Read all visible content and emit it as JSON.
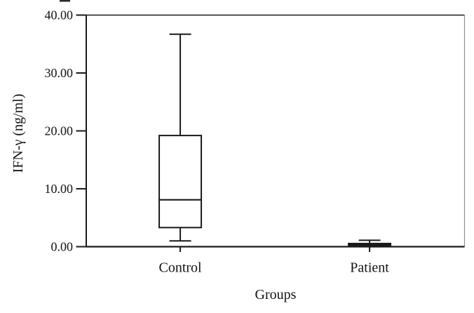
{
  "chart_data": {
    "type": "boxplot",
    "title": "",
    "xlabel": "Groups",
    "ylabel": "IFN-γ (ng/ml)",
    "ylim": [
      0,
      40
    ],
    "yticks": [
      0,
      10,
      20,
      30,
      40
    ],
    "ytick_labels": [
      "0.00",
      "10.00",
      "20.00",
      "30.00",
      "40.00"
    ],
    "categories": [
      "Control",
      "Patient"
    ],
    "series": [
      {
        "name": "Control",
        "whisker_low": 1.0,
        "q1": 3.3,
        "median": 8.1,
        "q3": 19.2,
        "whisker_high": 36.7
      },
      {
        "name": "Patient",
        "whisker_low": 0.0,
        "q1": 0.05,
        "median": 0.3,
        "q3": 0.55,
        "whisker_high": 1.1
      }
    ],
    "legend": "none",
    "grid": "off",
    "frame": "full",
    "colors": {
      "line": "#1a1a1a",
      "box_fill": "#ffffff",
      "frame_right": "#8f8f8f",
      "background": "#ffffff",
      "text": "#141414"
    }
  }
}
